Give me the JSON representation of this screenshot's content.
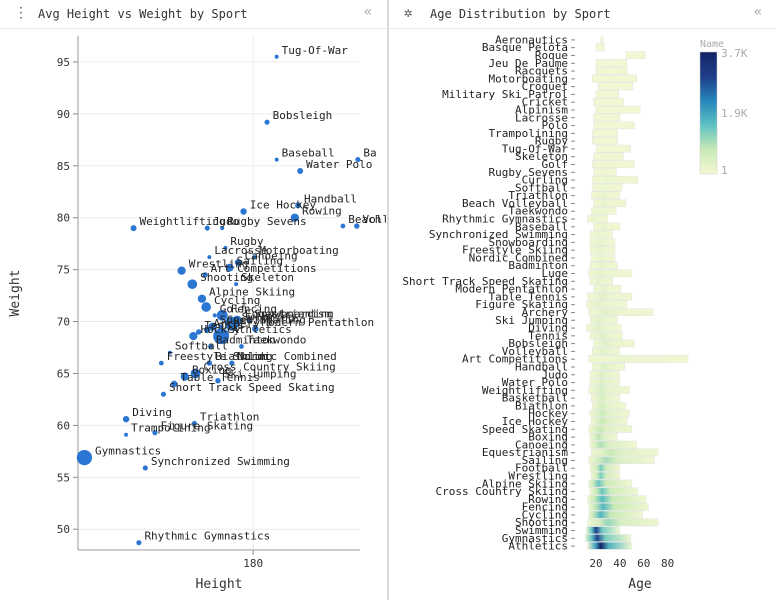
{
  "left_panel": {
    "title": "Avg Height vs Weight by Sport",
    "collapse_glyph": "«",
    "handle_glyph": "⋮"
  },
  "right_panel": {
    "title": "Age Distribution by Sport",
    "collapse_glyph": "«",
    "handle_glyph": "✲"
  },
  "chart_data": [
    {
      "type": "scatter",
      "title": "",
      "xlabel": "Height",
      "ylabel": "Weight",
      "xlim": [
        163.6,
        190
      ],
      "ylim": [
        48,
        97.5
      ],
      "x_ticks": [
        180
      ],
      "y_ticks": [
        50,
        55,
        60,
        65,
        70,
        75,
        80,
        85,
        90,
        95
      ],
      "grid": true,
      "color": "#1f6fd0",
      "points": [
        {
          "label": "Tug-Of-War",
          "x": 182.2,
          "y": 95.5,
          "size": 0.02
        },
        {
          "label": "Bobsleigh",
          "x": 181.3,
          "y": 89.2,
          "size": 0.05
        },
        {
          "label": "Baseball",
          "x": 182.2,
          "y": 85.6,
          "size": 0.02
        },
        {
          "label": "Ba",
          "x": 189.8,
          "y": 85.6,
          "size": 0.05
        },
        {
          "label": "Water Polo",
          "x": 184.4,
          "y": 84.5,
          "size": 0.08
        },
        {
          "label": "Handball",
          "x": 184.2,
          "y": 81.2,
          "size": 0.08
        },
        {
          "label": "Ice Hockey",
          "x": 179.1,
          "y": 80.6,
          "size": 0.1
        },
        {
          "label": "Rowing",
          "x": 183.9,
          "y": 80.0,
          "size": 0.2
        },
        {
          "label": "Beach Volleyball",
          "x": 188.4,
          "y": 79.2,
          "size": 0.04
        },
        {
          "label": "Volleyball",
          "x": 189.7,
          "y": 79.2,
          "size": 0.06
        },
        {
          "label": "Weightlifting",
          "x": 168.8,
          "y": 79.0,
          "size": 0.08
        },
        {
          "label": "Judo",
          "x": 175.7,
          "y": 79.0,
          "size": 0.05
        },
        {
          "label": "Rugby Sevens",
          "x": 177.1,
          "y": 79.0,
          "size": 0.02
        },
        {
          "label": "Rugby",
          "x": 177.4,
          "y": 77.1,
          "size": 0.02
        },
        {
          "label": "Lacrosse",
          "x": 175.9,
          "y": 76.2,
          "size": 0.02
        },
        {
          "label": "Motorboating",
          "x": 180.1,
          "y": 76.2,
          "size": 0.02
        },
        {
          "label": "Canoeing",
          "x": 178.6,
          "y": 75.7,
          "size": 0.12
        },
        {
          "label": "Sailing",
          "x": 177.8,
          "y": 75.2,
          "size": 0.18
        },
        {
          "label": "Art Competitions",
          "x": 175.5,
          "y": 74.5,
          "size": 0.05
        },
        {
          "label": "Wrestling",
          "x": 173.3,
          "y": 74.9,
          "size": 0.2
        },
        {
          "label": "Shooting",
          "x": 174.3,
          "y": 73.6,
          "size": 0.3
        },
        {
          "label": "Skeleton",
          "x": 178.4,
          "y": 73.6,
          "size": 0.02
        },
        {
          "label": "Alpine Skiing",
          "x": 175.2,
          "y": 72.2,
          "size": 0.2
        },
        {
          "label": "Cycling",
          "x": 175.6,
          "y": 71.4,
          "size": 0.3
        },
        {
          "label": "Golf",
          "x": 176.4,
          "y": 70.6,
          "size": 0.02
        },
        {
          "label": "Fencing",
          "x": 177.1,
          "y": 70.6,
          "size": 0.4
        },
        {
          "label": "Equestrianism",
          "x": 178.5,
          "y": 70.1,
          "size": 0.3
        },
        {
          "label": "Snowboarding",
          "x": 179.6,
          "y": 70.1,
          "size": 0.04
        },
        {
          "label": "Modern Pentathlon",
          "x": 180.2,
          "y": 69.3,
          "size": 0.1
        },
        {
          "label": "Archery",
          "x": 175.7,
          "y": 69.2,
          "size": 0.1
        },
        {
          "label": "Speed Skating",
          "x": 176.2,
          "y": 69.5,
          "size": 0.2
        },
        {
          "label": "Curling",
          "x": 177.0,
          "y": 69.5,
          "size": 0.03
        },
        {
          "label": "Swimming",
          "x": 178.0,
          "y": 69.8,
          "size": 0.7
        },
        {
          "label": "Hockey",
          "x": 174.4,
          "y": 68.6,
          "size": 0.2
        },
        {
          "label": "Athletics",
          "x": 177.0,
          "y": 68.6,
          "size": 1.0
        },
        {
          "label": "Tennis",
          "x": 174.9,
          "y": 69.0,
          "size": 0.06
        },
        {
          "label": "Softball",
          "x": 172.2,
          "y": 67.0,
          "size": 0.02
        },
        {
          "label": "Badminton",
          "x": 176.0,
          "y": 67.6,
          "size": 0.04
        },
        {
          "label": "Taekwondo",
          "x": 178.9,
          "y": 67.6,
          "size": 0.04
        },
        {
          "label": "Freestyle Skiing",
          "x": 171.4,
          "y": 66.0,
          "size": 0.04
        },
        {
          "label": "Biathlon",
          "x": 175.9,
          "y": 66.0,
          "size": 0.06
        },
        {
          "label": "Nordic Combined",
          "x": 178.0,
          "y": 66.0,
          "size": 0.05
        },
        {
          "label": "Cross Country Skiing",
          "x": 174.6,
          "y": 65.0,
          "size": 0.3
        },
        {
          "label": "Boxing",
          "x": 173.6,
          "y": 64.7,
          "size": 0.2
        },
        {
          "label": "Ski Jumping",
          "x": 176.7,
          "y": 64.3,
          "size": 0.06
        },
        {
          "label": "Table Tennis",
          "x": 172.6,
          "y": 64.0,
          "size": 0.1
        },
        {
          "label": "Short Track Speed Skating",
          "x": 171.6,
          "y": 63.0,
          "size": 0.05
        },
        {
          "label": "Triathlon",
          "x": 174.5,
          "y": 60.2,
          "size": 0.04
        },
        {
          "label": "Diving",
          "x": 168.1,
          "y": 60.6,
          "size": 0.1
        },
        {
          "label": "Figure Skating",
          "x": 170.8,
          "y": 59.3,
          "size": 0.05
        },
        {
          "label": "Trampolining",
          "x": 168.1,
          "y": 59.1,
          "size": 0.02
        },
        {
          "label": "Gymnastics",
          "x": 164.2,
          "y": 56.9,
          "size": 0.9
        },
        {
          "label": "Synchronized Swimming",
          "x": 169.9,
          "y": 55.9,
          "size": 0.05
        },
        {
          "label": "Rhythmic Gymnastics",
          "x": 169.3,
          "y": 48.7,
          "size": 0.05
        }
      ]
    },
    {
      "type": "heatmap",
      "title": "",
      "xlabel": "Age",
      "ylabel": "",
      "xlim": [
        10,
        97
      ],
      "x_ticks": [
        20,
        40,
        60,
        80
      ],
      "legend_title": "Name",
      "legend_position": "top-right",
      "color_scale": {
        "min": 1,
        "mid": 1900,
        "max": 3700,
        "labels": [
          "3.7K",
          "1.9K",
          "1"
        ],
        "colors": [
          "#f3f8d4",
          "#c8e9b6",
          "#5fc2c2",
          "#2686bb",
          "#1f3d8a",
          "#112466"
        ]
      },
      "rows": [
        {
          "sport": "Aeronautics",
          "min": 24,
          "max": 26,
          "peak": 25,
          "intensity": 0.0
        },
        {
          "sport": "Basque Pelota",
          "min": 20,
          "max": 27,
          "peak": 24,
          "intensity": 0.0
        },
        {
          "sport": "Roque",
          "min": 45,
          "max": 61,
          "peak": 52,
          "intensity": 0.0
        },
        {
          "sport": "Jeu De Paume",
          "min": 20,
          "max": 46,
          "peak": 28,
          "intensity": 0.01
        },
        {
          "sport": "Racquets",
          "min": 20,
          "max": 46,
          "peak": 27,
          "intensity": 0.01
        },
        {
          "sport": "Motorboating",
          "min": 17,
          "max": 54,
          "peak": 30,
          "intensity": 0.01
        },
        {
          "sport": "Croquet",
          "min": 22,
          "max": 51,
          "peak": 35,
          "intensity": 0.01
        },
        {
          "sport": "Military Ski Patrol",
          "min": 20,
          "max": 39,
          "peak": 27,
          "intensity": 0.01
        },
        {
          "sport": "Cricket",
          "min": 18,
          "max": 43,
          "peak": 27,
          "intensity": 0.01
        },
        {
          "sport": "Alpinism",
          "min": 20,
          "max": 57,
          "peak": 32,
          "intensity": 0.01
        },
        {
          "sport": "Lacrosse",
          "min": 18,
          "max": 40,
          "peak": 25,
          "intensity": 0.01
        },
        {
          "sport": "Polo",
          "min": 18,
          "max": 52,
          "peak": 30,
          "intensity": 0.02
        },
        {
          "sport": "Trampolining",
          "min": 17,
          "max": 38,
          "peak": 24,
          "intensity": 0.02
        },
        {
          "sport": "Rugby",
          "min": 17,
          "max": 38,
          "peak": 25,
          "intensity": 0.02
        },
        {
          "sport": "Tug-Of-War",
          "min": 20,
          "max": 49,
          "peak": 30,
          "intensity": 0.02
        },
        {
          "sport": "Skeleton",
          "min": 18,
          "max": 43,
          "peak": 27,
          "intensity": 0.03
        },
        {
          "sport": "Golf",
          "min": 17,
          "max": 52,
          "peak": 28,
          "intensity": 0.03
        },
        {
          "sport": "Rugby Sevens",
          "min": 18,
          "max": 37,
          "peak": 25,
          "intensity": 0.03
        },
        {
          "sport": "Curling",
          "min": 17,
          "max": 55,
          "peak": 30,
          "intensity": 0.04
        },
        {
          "sport": "Softball",
          "min": 17,
          "max": 42,
          "peak": 26,
          "intensity": 0.04
        },
        {
          "sport": "Triathlon",
          "min": 16,
          "max": 40,
          "peak": 27,
          "intensity": 0.05
        },
        {
          "sport": "Beach Volleyball",
          "min": 18,
          "max": 45,
          "peak": 27,
          "intensity": 0.05
        },
        {
          "sport": "Taekwondo",
          "min": 16,
          "max": 37,
          "peak": 23,
          "intensity": 0.05
        },
        {
          "sport": "Rhythmic Gymnastics",
          "min": 13,
          "max": 30,
          "peak": 18,
          "intensity": 0.05
        },
        {
          "sport": "Baseball",
          "min": 18,
          "max": 40,
          "peak": 26,
          "intensity": 0.05
        },
        {
          "sport": "Synchronized Swimming",
          "min": 15,
          "max": 34,
          "peak": 22,
          "intensity": 0.06
        },
        {
          "sport": "Snowboarding",
          "min": 15,
          "max": 36,
          "peak": 23,
          "intensity": 0.06
        },
        {
          "sport": "Freestyle Skiing",
          "min": 15,
          "max": 36,
          "peak": 23,
          "intensity": 0.06
        },
        {
          "sport": "Nordic Combined",
          "min": 16,
          "max": 36,
          "peak": 23,
          "intensity": 0.06
        },
        {
          "sport": "Badminton",
          "min": 15,
          "max": 38,
          "peak": 25,
          "intensity": 0.07
        },
        {
          "sport": "Luge",
          "min": 14,
          "max": 50,
          "peak": 24,
          "intensity": 0.07
        },
        {
          "sport": "Short Track Speed Skating",
          "min": 15,
          "max": 34,
          "peak": 22,
          "intensity": 0.07
        },
        {
          "sport": "Modern Pentathlon",
          "min": 18,
          "max": 41,
          "peak": 26,
          "intensity": 0.07
        },
        {
          "sport": "Table Tennis",
          "min": 13,
          "max": 50,
          "peak": 25,
          "intensity": 0.08
        },
        {
          "sport": "Figure Skating",
          "min": 12,
          "max": 46,
          "peak": 21,
          "intensity": 0.08
        },
        {
          "sport": "Archery",
          "min": 14,
          "max": 68,
          "peak": 27,
          "intensity": 0.09
        },
        {
          "sport": "Ski Jumping",
          "min": 15,
          "max": 38,
          "peak": 22,
          "intensity": 0.09
        },
        {
          "sport": "Diving",
          "min": 12,
          "max": 41,
          "peak": 22,
          "intensity": 0.1
        },
        {
          "sport": "Tennis",
          "min": 15,
          "max": 42,
          "peak": 25,
          "intensity": 0.1
        },
        {
          "sport": "Bobsleigh",
          "min": 18,
          "max": 52,
          "peak": 28,
          "intensity": 0.1
        },
        {
          "sport": "Volleyball",
          "min": 17,
          "max": 40,
          "peak": 25,
          "intensity": 0.1
        },
        {
          "sport": "Art Competitions",
          "min": 14,
          "max": 97,
          "peak": 42,
          "intensity": 0.05
        },
        {
          "sport": "Handball",
          "min": 17,
          "max": 44,
          "peak": 26,
          "intensity": 0.12
        },
        {
          "sport": "Judo",
          "min": 15,
          "max": 40,
          "peak": 24,
          "intensity": 0.12
        },
        {
          "sport": "Water Polo",
          "min": 15,
          "max": 40,
          "peak": 25,
          "intensity": 0.13
        },
        {
          "sport": "Weightlifting",
          "min": 14,
          "max": 48,
          "peak": 24,
          "intensity": 0.14
        },
        {
          "sport": "Basketball",
          "min": 16,
          "max": 40,
          "peak": 25,
          "intensity": 0.15
        },
        {
          "sport": "Biathlon",
          "min": 17,
          "max": 45,
          "peak": 25,
          "intensity": 0.15
        },
        {
          "sport": "Hockey",
          "min": 15,
          "max": 48,
          "peak": 25,
          "intensity": 0.18
        },
        {
          "sport": "Ice Hockey",
          "min": 16,
          "max": 46,
          "peak": 25,
          "intensity": 0.2
        },
        {
          "sport": "Speed Skating",
          "min": 14,
          "max": 50,
          "peak": 23,
          "intensity": 0.2
        },
        {
          "sport": "Boxing",
          "min": 15,
          "max": 38,
          "peak": 22,
          "intensity": 0.22
        },
        {
          "sport": "Canoeing",
          "min": 15,
          "max": 54,
          "peak": 24,
          "intensity": 0.24
        },
        {
          "sport": "Equestrianism",
          "min": 16,
          "max": 72,
          "peak": 32,
          "intensity": 0.2
        },
        {
          "sport": "Sailing",
          "min": 14,
          "max": 69,
          "peak": 28,
          "intensity": 0.26
        },
        {
          "sport": "Football",
          "min": 15,
          "max": 40,
          "peak": 24,
          "intensity": 0.35
        },
        {
          "sport": "Wrestling",
          "min": 16,
          "max": 40,
          "peak": 24,
          "intensity": 0.35
        },
        {
          "sport": "Alpine Skiing",
          "min": 14,
          "max": 50,
          "peak": 22,
          "intensity": 0.38
        },
        {
          "sport": "Cross Country Skiing",
          "min": 15,
          "max": 55,
          "peak": 25,
          "intensity": 0.38
        },
        {
          "sport": "Rowing",
          "min": 13,
          "max": 62,
          "peak": 25,
          "intensity": 0.42
        },
        {
          "sport": "Fencing",
          "min": 14,
          "max": 64,
          "peak": 26,
          "intensity": 0.44
        },
        {
          "sport": "Cycling",
          "min": 14,
          "max": 59,
          "peak": 24,
          "intensity": 0.45
        },
        {
          "sport": "Shooting",
          "min": 13,
          "max": 72,
          "peak": 30,
          "intensity": 0.3
        },
        {
          "sport": "Swimming",
          "min": 12,
          "max": 40,
          "peak": 20,
          "intensity": 0.8
        },
        {
          "sport": "Gymnastics",
          "min": 11,
          "max": 49,
          "peak": 21,
          "intensity": 0.78
        },
        {
          "sport": "Athletics",
          "min": 13,
          "max": 50,
          "peak": 24,
          "intensity": 1.0
        }
      ]
    }
  ]
}
